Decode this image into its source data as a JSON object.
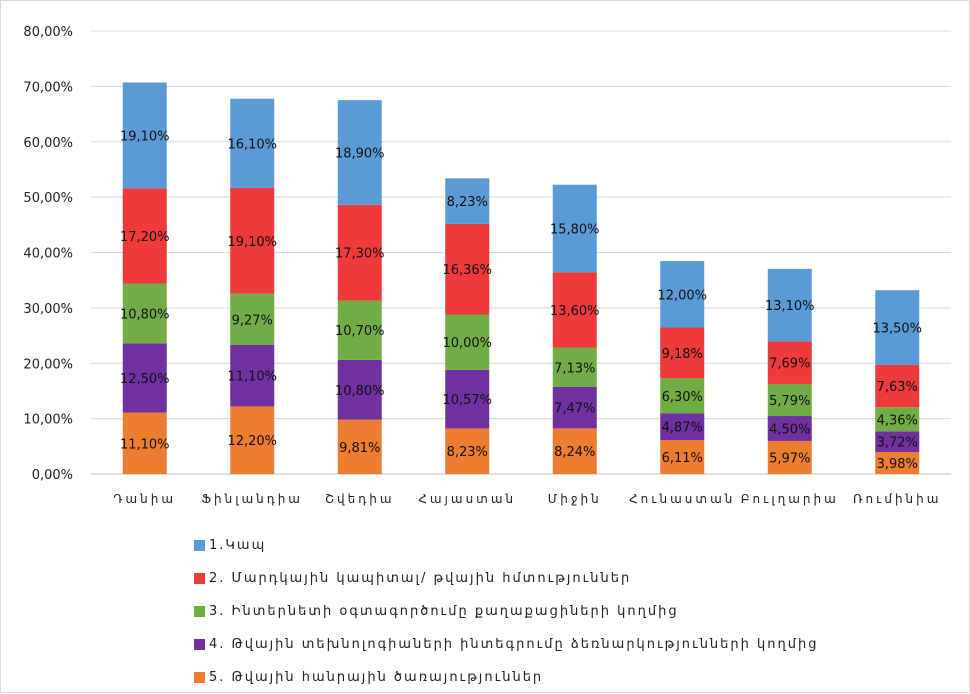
{
  "chart_data": {
    "type": "bar",
    "stacked": true,
    "categories": [
      "Դանիա",
      "Ֆինլանդիա",
      "Շվեդիա",
      "Հայաստան",
      "Միջին",
      "Հունաստան",
      "Բուլղարիա",
      "Ռումինիա"
    ],
    "series": [
      {
        "name": "5. Թվային հանրային ծառայություններ",
        "color": "#ED7D31",
        "values": [
          11.1,
          12.2,
          9.81,
          8.23,
          8.24,
          6.11,
          5.97,
          3.98
        ],
        "labels": [
          "11,10%",
          "12,20%",
          "9,81%",
          "8,23%",
          "8,24%",
          "6,11%",
          "5,97%",
          "3,98%"
        ]
      },
      {
        "name": "4. Թվային տեխնոլոգիաների ինտեգրումը ձեռնարկությունների կողմից",
        "color": "#7030A0",
        "values": [
          12.5,
          11.1,
          10.8,
          10.57,
          7.47,
          4.87,
          4.5,
          3.72
        ],
        "labels": [
          "12,50%",
          "11,10%",
          "10,80%",
          "10,57%",
          "7,47%",
          "4,87%",
          "4,50%",
          "3,72%"
        ]
      },
      {
        "name": "3. Ինտերնետի օգտագործումը քաղաքացիների կողմից",
        "color": "#70AD47",
        "values": [
          10.8,
          9.27,
          10.7,
          10.0,
          7.13,
          6.3,
          5.79,
          4.36
        ],
        "labels": [
          "10,80%",
          "9,27%",
          "10,70%",
          "10,00%",
          "7,13%",
          "6,30%",
          "5,79%",
          "4,36%"
        ]
      },
      {
        "name": "2. Մարդկային կապիտալ/ թվային հմտություններ",
        "color": "#EE3A3A",
        "values": [
          17.2,
          19.1,
          17.3,
          16.36,
          13.6,
          9.18,
          7.69,
          7.63
        ],
        "labels": [
          "17,20%",
          "19,10%",
          "17,30%",
          "16,36%",
          "13,60%",
          "9,18%",
          "7,69%",
          "7,63%"
        ]
      },
      {
        "name": "1.Կապ",
        "color": "#5B9BD5",
        "values": [
          19.1,
          16.1,
          18.9,
          8.23,
          15.8,
          12.0,
          13.1,
          13.5
        ],
        "labels": [
          "19,10%",
          "16,10%",
          "18,90%",
          "8,23%",
          "15,80%",
          "12,00%",
          "13,10%",
          "13,50%"
        ]
      }
    ],
    "ylim": [
      0,
      80
    ],
    "yticks": [
      "0,00%",
      "10,00%",
      "20,00%",
      "30,00%",
      "40,00%",
      "50,00%",
      "60,00%",
      "70,00%",
      "80,00%"
    ],
    "grid": true,
    "legend": "bottom"
  },
  "legend": [
    {
      "label": "1.Կապ",
      "color": "#5B9BD5"
    },
    {
      "label": "2. Մարդկային կապիտալ/ թվային հմտություններ",
      "color": "#EE3A3A"
    },
    {
      "label": "3. Ինտերնետի օգտագործումը քաղաքացիների կողմից",
      "color": "#70AD47"
    },
    {
      "label": "4. Թվային տեխնոլոգիաների ինտեգրումը ձեռնարկությունների կողմից",
      "color": "#7030A0"
    },
    {
      "label": "5. Թվային հանրային ծառայություններ",
      "color": "#ED7D31"
    }
  ]
}
